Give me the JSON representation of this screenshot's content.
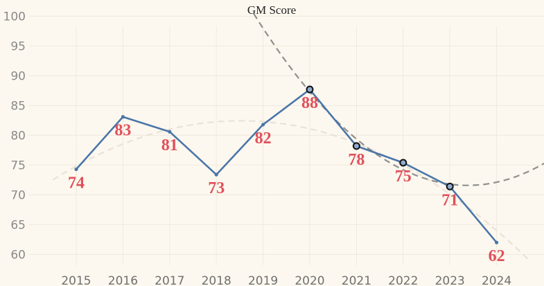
{
  "chart_data": {
    "type": "line",
    "title": "GM Score",
    "xlabel": "",
    "ylabel": "",
    "x": [
      "2015",
      "2016",
      "2017",
      "2018",
      "2019",
      "2020",
      "2021",
      "2022",
      "2023",
      "2024"
    ],
    "series": [
      {
        "values": [
          74.3,
          83.1,
          80.6,
          73.4,
          81.8,
          87.7,
          78.2,
          75.4,
          71.4,
          62
        ],
        "labels": [
          "74",
          "83",
          "81",
          "73",
          "82",
          "88",
          "78",
          "75",
          "71",
          "62"
        ],
        "highlighted": [
          false,
          false,
          false,
          false,
          false,
          true,
          true,
          true,
          true,
          false
        ]
      }
    ],
    "trend_lines": [
      {
        "style": "dashed",
        "color": "#e8e2d8",
        "range": [
          "2014.5",
          "2024.7"
        ]
      },
      {
        "style": "dashed",
        "color": "#8f8f8f",
        "range": [
          "2018.8",
          "2025.1"
        ]
      }
    ],
    "yticks": [
      "60",
      "65",
      "70",
      "75",
      "80",
      "85",
      "90",
      "95",
      "100"
    ],
    "ylim": [
      58,
      101
    ],
    "grid": true,
    "colors": {
      "line": "#4a76a8",
      "label": "#e0505a",
      "background": "#fdf8ef",
      "highlight_fill": "#8faad0"
    }
  }
}
